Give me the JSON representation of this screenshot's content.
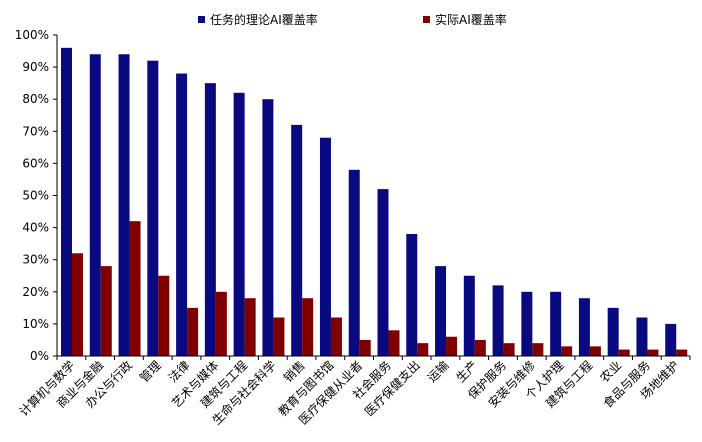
{
  "chart_data": {
    "type": "bar",
    "categories": [
      "计算机与数学",
      "商业与金融",
      "办公与行政",
      "管理",
      "法律",
      "艺术与媒体",
      "建筑与工程",
      "生命与社会科学",
      "销售",
      "教育与图书馆",
      "医疗保健从业者",
      "社会服务",
      "医疗保健支出",
      "运输",
      "生产",
      "保护服务",
      "安装与维修",
      "个人护理",
      "建筑与工程",
      "农业",
      "食品与服务",
      "场地维护"
    ],
    "series": [
      {
        "name": "任务的理论AI覆盖率",
        "color": "#0a0a80",
        "values": [
          96,
          94,
          94,
          92,
          88,
          85,
          82,
          80,
          72,
          68,
          58,
          52,
          38,
          28,
          25,
          22,
          20,
          20,
          18,
          15,
          12,
          10
        ]
      },
      {
        "name": "实际AI覆盖率",
        "color": "#800000",
        "values": [
          32,
          28,
          42,
          25,
          15,
          20,
          18,
          12,
          18,
          12,
          5,
          8,
          4,
          6,
          5,
          4,
          4,
          3,
          3,
          2,
          2,
          2
        ]
      }
    ],
    "ylim": [
      0,
      100
    ],
    "yticks": [
      "0%",
      "10%",
      "20%",
      "30%",
      "40%",
      "50%",
      "60%",
      "70%",
      "80%",
      "90%",
      "100%"
    ],
    "legend": "top",
    "grid": false
  }
}
